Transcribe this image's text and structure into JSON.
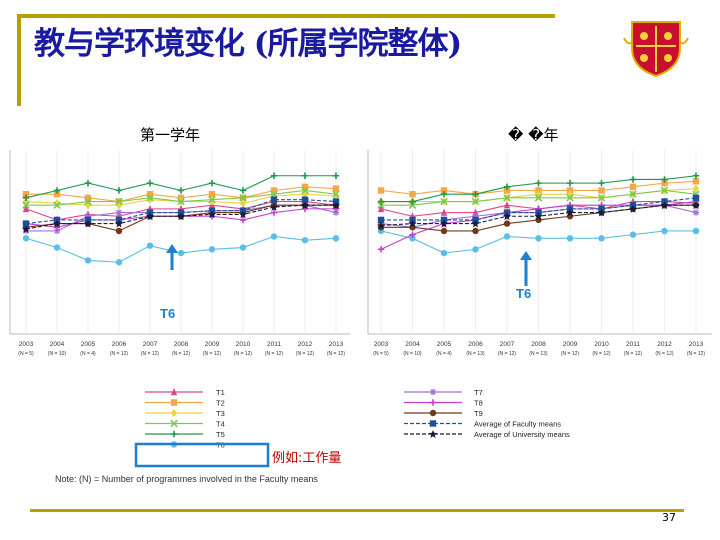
{
  "slide": {
    "title": "教与学环境变化 (所属学院整体)",
    "left_label": "第一学年",
    "right_label": "� �年",
    "example_label": "例如:工作量",
    "note": "Note: (N) = Number of programmes involved in the Faculty means",
    "page_number": "37",
    "accent_color": "#b8a000",
    "title_color": "#1a1aa0"
  },
  "chart_data": [
    {
      "type": "line",
      "title": "第一学年",
      "x": [
        "2003",
        "2004",
        "2005",
        "2006",
        "2007",
        "2008",
        "2009",
        "2010",
        "2011",
        "2012",
        "2013"
      ],
      "n_labels": [
        "(N = 5)",
        "(N = 10)",
        "(N = 4)",
        "(N = 12)",
        "(N = 12)",
        "(N = 12)",
        "(N = 12)",
        "(N = 12)",
        "(N = 12)",
        "(N = 12)",
        "(N = 12)"
      ],
      "annotation": "T6",
      "ylim": [
        0,
        100
      ],
      "series": [
        {
          "name": "T1",
          "color": "#e0448c",
          "marker": "triangle",
          "values": [
            68,
            62,
            65,
            64,
            68,
            68,
            70,
            68,
            72,
            72,
            70
          ]
        },
        {
          "name": "T2",
          "color": "#f4a742",
          "marker": "square",
          "values": [
            76,
            76,
            74,
            72,
            76,
            74,
            76,
            74,
            78,
            80,
            79
          ]
        },
        {
          "name": "T3",
          "color": "#e8d43c",
          "marker": "diamond",
          "values": [
            72,
            71,
            70,
            70,
            73,
            72,
            72,
            71,
            75,
            76,
            75
          ]
        },
        {
          "name": "T4",
          "color": "#7ec850",
          "marker": "x",
          "values": [
            70,
            70,
            72,
            72,
            74,
            72,
            73,
            74,
            76,
            78,
            76
          ]
        },
        {
          "name": "T5",
          "color": "#1e9650",
          "marker": "plus",
          "values": [
            74,
            78,
            82,
            78,
            82,
            78,
            82,
            78,
            86,
            86,
            86
          ]
        },
        {
          "name": "T6",
          "color": "#5abee8",
          "marker": "circle",
          "values": [
            52,
            47,
            40,
            39,
            48,
            44,
            46,
            47,
            53,
            51,
            52
          ]
        },
        {
          "name": "T7",
          "color": "#a070d8",
          "marker": "asterisk",
          "values": [
            56,
            56,
            64,
            66,
            66,
            66,
            67,
            67,
            70,
            70,
            66
          ]
        },
        {
          "name": "T8",
          "color": "#c83cd2",
          "marker": "plus",
          "values": [
            60,
            58,
            62,
            62,
            64,
            64,
            64,
            62,
            66,
            68,
            68
          ]
        },
        {
          "name": "T9",
          "color": "#6e3a18",
          "marker": "circle",
          "values": [
            58,
            60,
            60,
            56,
            64,
            64,
            66,
            66,
            70,
            70,
            70
          ]
        },
        {
          "name": "Average of Faculty means",
          "color": "#1e4f9a",
          "marker": "square",
          "dash": true,
          "values": [
            60,
            62,
            62,
            62,
            66,
            66,
            67,
            67,
            73,
            73,
            72
          ]
        },
        {
          "name": "Average of University means",
          "color": "#1a1a3a",
          "marker": "star",
          "dash": true,
          "values": [
            57,
            60,
            60,
            60,
            64,
            64,
            65,
            65,
            69,
            70,
            70
          ]
        }
      ]
    },
    {
      "type": "line",
      "title": "� �年",
      "x": [
        "2003",
        "2004",
        "2005",
        "2006",
        "2007",
        "2008",
        "2009",
        "2010",
        "2011",
        "2012",
        "2013"
      ],
      "n_labels": [
        "(N = 5)",
        "(N = 10)",
        "(N = 4)",
        "(N = 13)",
        "(N = 12)",
        "(N = 13)",
        "(N = 12)",
        "(N = 12)",
        "(N = 12)",
        "(N = 12)",
        "(N = 12)"
      ],
      "annotation": "T6",
      "ylim": [
        0,
        100
      ],
      "series": [
        {
          "name": "T1",
          "color": "#e0448c",
          "marker": "triangle",
          "values": [
            68,
            64,
            66,
            66,
            70,
            68,
            70,
            68,
            72,
            72,
            71
          ]
        },
        {
          "name": "T2",
          "color": "#f4a742",
          "marker": "square",
          "values": [
            78,
            76,
            78,
            76,
            78,
            78,
            78,
            78,
            80,
            82,
            83
          ]
        },
        {
          "name": "T3",
          "color": "#e8d43c",
          "marker": "diamond",
          "values": [
            72,
            72,
            72,
            72,
            74,
            76,
            76,
            74,
            76,
            78,
            79
          ]
        },
        {
          "name": "T4",
          "color": "#7ec850",
          "marker": "x",
          "values": [
            70,
            70,
            72,
            72,
            74,
            74,
            74,
            74,
            76,
            78,
            76
          ]
        },
        {
          "name": "T5",
          "color": "#1e9650",
          "marker": "plus",
          "values": [
            72,
            72,
            76,
            76,
            80,
            82,
            82,
            82,
            84,
            84,
            86
          ]
        },
        {
          "name": "T6",
          "color": "#5abee8",
          "marker": "circle",
          "values": [
            56,
            52,
            44,
            46,
            53,
            52,
            52,
            52,
            54,
            56,
            56
          ]
        },
        {
          "name": "T7",
          "color": "#a070d8",
          "marker": "asterisk",
          "values": [
            60,
            58,
            62,
            64,
            66,
            66,
            68,
            68,
            70,
            70,
            66
          ]
        },
        {
          "name": "T8",
          "color": "#c83cd2",
          "marker": "plus",
          "values": [
            46,
            54,
            60,
            62,
            66,
            68,
            70,
            70,
            70,
            70,
            72
          ]
        },
        {
          "name": "T9",
          "color": "#6e3a18",
          "marker": "circle",
          "values": [
            58,
            58,
            56,
            56,
            60,
            62,
            64,
            66,
            68,
            70,
            70
          ]
        },
        {
          "name": "Average of Faculty means",
          "color": "#1e4f9a",
          "marker": "square",
          "dash": true,
          "values": [
            62,
            62,
            62,
            62,
            66,
            66,
            68,
            68,
            70,
            72,
            74
          ]
        },
        {
          "name": "Average of University means",
          "color": "#1a1a3a",
          "marker": "star",
          "dash": true,
          "values": [
            59,
            60,
            60,
            60,
            64,
            64,
            66,
            66,
            68,
            70,
            70
          ]
        }
      ]
    }
  ]
}
